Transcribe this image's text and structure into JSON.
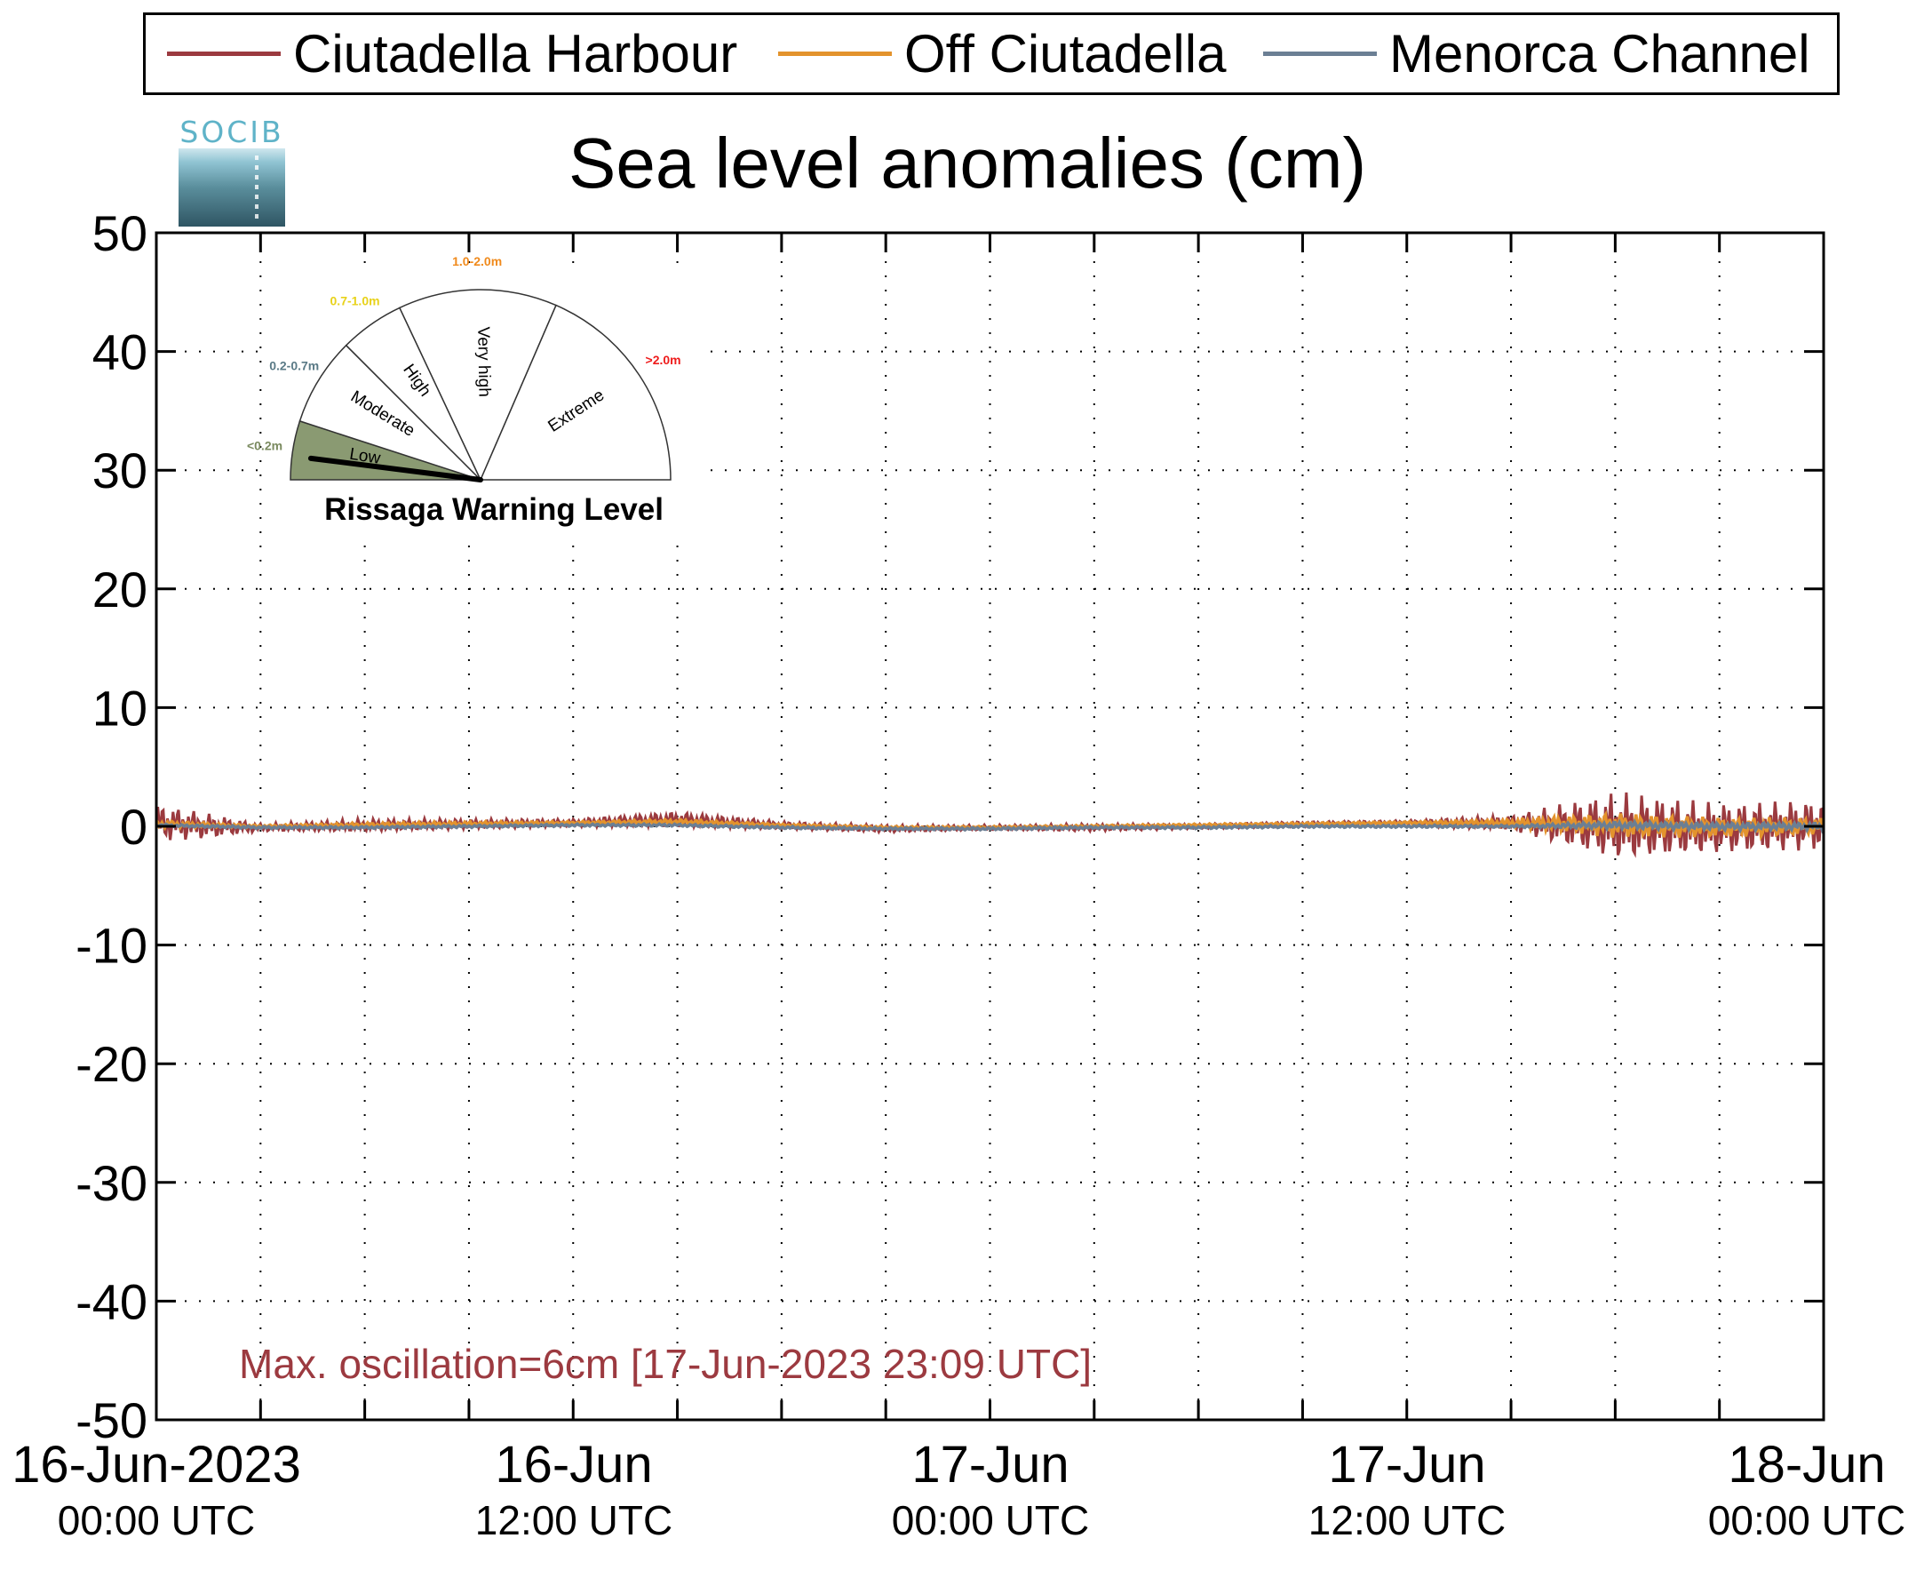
{
  "legend": {
    "items": [
      {
        "label": "Ciutadella Harbour",
        "color": "#9b3a3f"
      },
      {
        "label": "Off Ciutadella",
        "color": "#e3932d"
      },
      {
        "label": "Menorca Channel",
        "color": "#6b7f94"
      }
    ]
  },
  "logo": {
    "text": "SOCIB"
  },
  "chart_data": {
    "type": "line",
    "title": "Sea level anomalies (cm)",
    "ylabel": "",
    "xlabel": "",
    "ylim": [
      -50,
      50
    ],
    "yticks": [
      50,
      40,
      30,
      20,
      10,
      0,
      -10,
      -20,
      -30,
      -40,
      -50
    ],
    "xlim": [
      "2023-06-16 00:00",
      "2023-06-18 00:00"
    ],
    "xticks": [
      {
        "line1": "16-Jun-2023",
        "line2": "00:00 UTC"
      },
      {
        "line1": "16-Jun",
        "line2": "12:00 UTC"
      },
      {
        "line1": "17-Jun",
        "line2": "00:00 UTC"
      },
      {
        "line1": "17-Jun",
        "line2": "12:00 UTC"
      },
      {
        "line1": "18-Jun",
        "line2": "00:00 UTC"
      }
    ],
    "grid": true,
    "legend_position": "top",
    "series": [
      {
        "name": "Ciutadella Harbour",
        "color": "#9b3a3f",
        "time_hours": [
          0,
          1.5,
          3,
          6,
          9,
          12,
          15,
          18,
          21,
          24,
          27,
          30,
          33,
          36,
          39,
          42,
          45,
          48
        ],
        "mean": [
          0.3,
          0.0,
          -0.1,
          0.1,
          0.2,
          0.3,
          0.6,
          0.1,
          -0.2,
          -0.1,
          -0.1,
          0.0,
          0.2,
          0.3,
          0.3,
          0.0,
          -0.2,
          0.1
        ],
        "amplitude": [
          1.5,
          1.0,
          0.3,
          0.5,
          0.4,
          0.3,
          0.6,
          0.3,
          0.3,
          0.2,
          0.3,
          0.2,
          0.2,
          0.2,
          0.6,
          2.7,
          2.0,
          2.0
        ]
      },
      {
        "name": "Off Ciutadella",
        "color": "#e3932d",
        "time_hours": [
          0,
          3,
          6,
          9,
          12,
          15,
          18,
          21,
          24,
          27,
          30,
          33,
          36,
          39,
          42,
          45,
          48
        ],
        "mean": [
          0.2,
          0.0,
          0.1,
          0.2,
          0.3,
          0.4,
          0.1,
          -0.1,
          -0.1,
          0.0,
          0.1,
          0.2,
          0.3,
          0.3,
          0.1,
          -0.1,
          0.0
        ],
        "amplitude": [
          0.3,
          0.1,
          0.2,
          0.2,
          0.1,
          0.2,
          0.1,
          0.1,
          0.1,
          0.1,
          0.1,
          0.1,
          0.1,
          0.3,
          1.0,
          0.8,
          0.7
        ]
      },
      {
        "name": "Menorca Channel",
        "color": "#6b7f94",
        "time_hours": [
          0,
          3,
          6,
          9,
          12,
          15,
          18,
          21,
          24,
          27,
          30,
          33,
          36,
          39,
          42,
          45,
          48
        ],
        "mean": [
          0.1,
          -0.1,
          -0.1,
          0.0,
          0.1,
          0.1,
          -0.1,
          -0.2,
          -0.2,
          -0.1,
          -0.1,
          0.0,
          0.0,
          0.0,
          0.1,
          0.0,
          0.0
        ],
        "amplitude": [
          0.1,
          0.1,
          0.1,
          0.1,
          0.1,
          0.1,
          0.1,
          0.1,
          0.1,
          0.1,
          0.1,
          0.1,
          0.1,
          0.1,
          0.3,
          0.3,
          0.3
        ]
      }
    ],
    "annotation": "Max. oscillation=6cm [17-Jun-2023 23:09 UTC]"
  },
  "gauge": {
    "title": "Rissaga Warning Level",
    "current_level": "Low",
    "needle_fraction": 0.04,
    "sectors": [
      {
        "name": "Low",
        "range": "<0.2m",
        "range_color": "#7a8a5f",
        "fill": "#8a9a72",
        "from": 0,
        "to": 0.1
      },
      {
        "name": "Moderate",
        "range": "0.2-0.7m",
        "range_color": "#5a7a86",
        "fill": "#ffffff",
        "from": 0.1,
        "to": 0.25
      },
      {
        "name": "High",
        "range": "0.7-1.0m",
        "range_color": "#e8d21a",
        "fill": "#ffffff",
        "from": 0.25,
        "to": 0.36
      },
      {
        "name": "Very high",
        "range": "1.0-2.0m",
        "range_color": "#f08a1c",
        "fill": "#ffffff",
        "from": 0.36,
        "to": 0.63
      },
      {
        "name": "Extreme",
        "range": ">2.0m",
        "range_color": "#ee1c1c",
        "fill": "#ffffff",
        "from": 0.63,
        "to": 1.0
      }
    ]
  }
}
